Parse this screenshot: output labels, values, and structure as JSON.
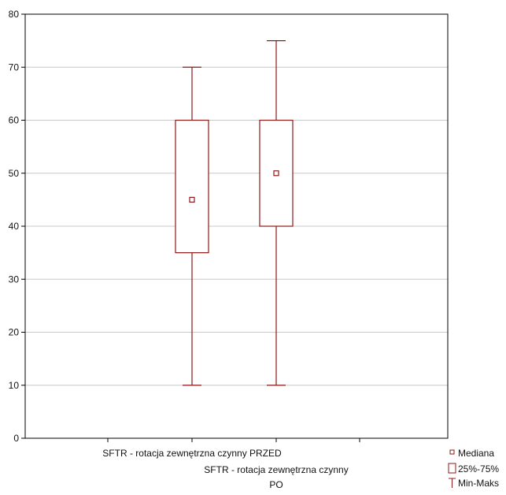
{
  "chart_data": {
    "type": "boxplot",
    "ylim": [
      0,
      80
    ],
    "yticks": [
      0,
      10,
      20,
      30,
      40,
      50,
      60,
      70,
      80
    ],
    "grid": true,
    "categories": [
      {
        "label_lines": [
          "SFTR - rotacja zewnętrzna czynny PRZED"
        ],
        "min": 10,
        "q1": 35,
        "median": 45,
        "q3": 60,
        "max": 70
      },
      {
        "label_lines": [
          "SFTR - rotacja zewnętrzna czynny",
          "PO"
        ],
        "min": 10,
        "q1": 40,
        "median": 50,
        "q3": 60,
        "max": 75
      }
    ],
    "legend": [
      {
        "symbol": "median",
        "label": "Mediana"
      },
      {
        "symbol": "box",
        "label": "25%-75%"
      },
      {
        "symbol": "whisker",
        "label": "Min-Maks"
      }
    ],
    "legend_position": "bottom-right",
    "colors": {
      "box": "#8b1a1a",
      "grid": "#c8c8c8",
      "frame": "#000000"
    }
  }
}
